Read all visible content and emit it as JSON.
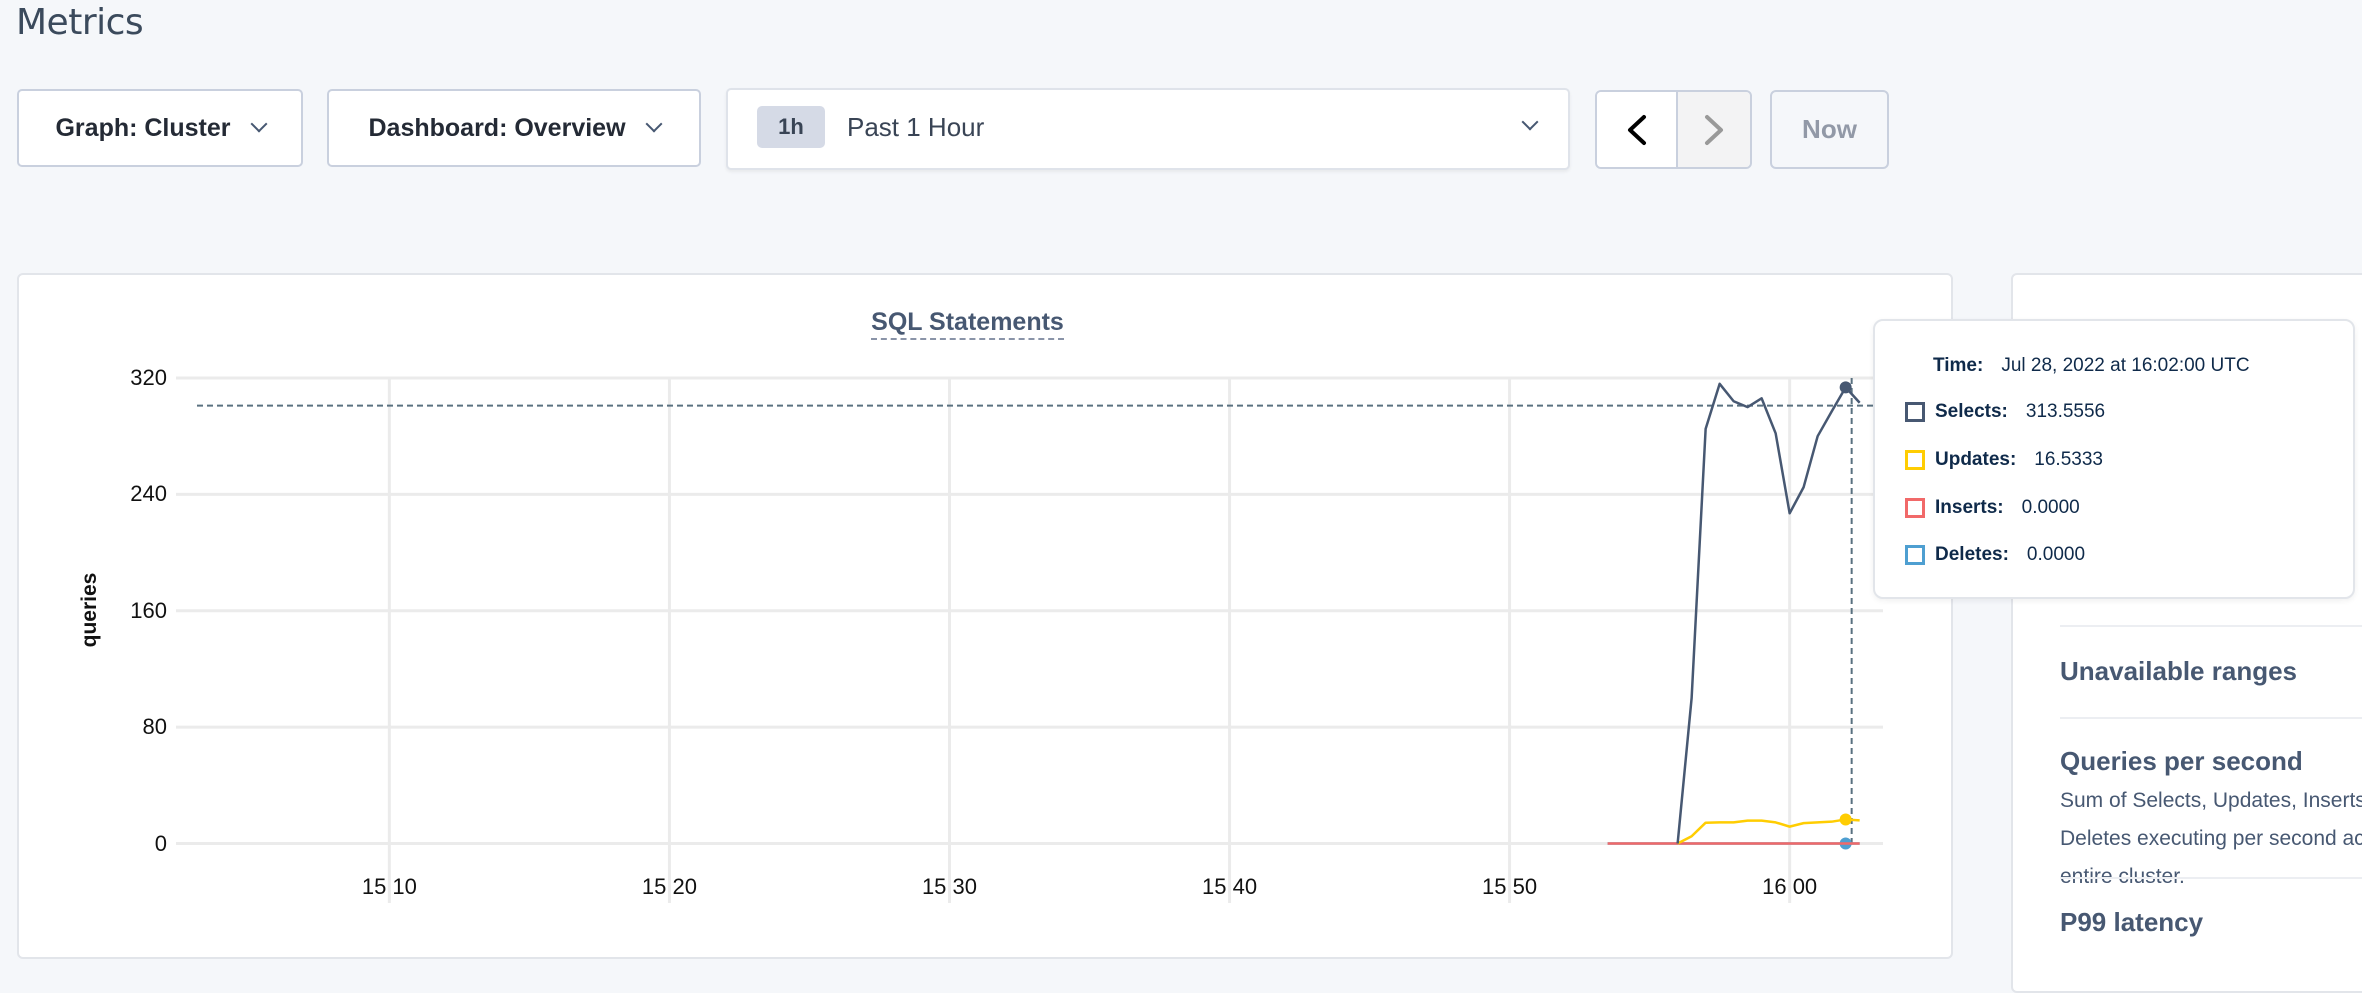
{
  "page": {
    "title": "Metrics"
  },
  "toolbar": {
    "graph_dropdown": "Graph: Cluster",
    "dashboard_dropdown": "Dashboard: Overview",
    "time_badge": "1h",
    "time_range": "Past 1 Hour",
    "prev_icon": "chevron-left-icon",
    "next_icon": "chevron-right-icon",
    "now_label": "Now"
  },
  "chart_data": {
    "type": "line",
    "title": "SQL Statements",
    "ylabel": "queries",
    "xlabel": "",
    "ylim": [
      0,
      320
    ],
    "yticks": [
      "320",
      "240",
      "160",
      "80",
      "0"
    ],
    "ytick_values": [
      320,
      240,
      160,
      80,
      0
    ],
    "xlim": [
      "15:02:40",
      "16:03:20"
    ],
    "xticks": [
      "15:10",
      "15:20",
      "15:30",
      "15:40",
      "15:50",
      "16:00"
    ],
    "grid": true,
    "series": [
      {
        "name": "Selects",
        "color": "#475872",
        "x": [
          "15:56:00",
          "15:56:30",
          "15:57:00",
          "15:57:30",
          "15:58:00",
          "15:58:30",
          "15:59:00",
          "15:59:30",
          "16:00:00",
          "16:00:30",
          "16:01:00",
          "16:01:30",
          "16:02:00",
          "16:02:30"
        ],
        "values": [
          0,
          100,
          285,
          316,
          304,
          300,
          306,
          282,
          227,
          245,
          280,
          297,
          313.5556,
          303
        ]
      },
      {
        "name": "Updates",
        "color": "#ffcd02",
        "x": [
          "15:56:00",
          "15:56:30",
          "15:57:00",
          "15:57:30",
          "15:58:00",
          "15:58:30",
          "15:59:00",
          "15:59:30",
          "16:00:00",
          "16:00:30",
          "16:01:00",
          "16:01:30",
          "16:02:00",
          "16:02:30"
        ],
        "values": [
          0,
          5,
          14.3,
          14.5,
          14.5,
          15.7,
          15.7,
          14.5,
          11.6,
          14,
          14.5,
          15,
          16.5333,
          15.9
        ]
      },
      {
        "name": "Inserts",
        "color": "#f16969",
        "x": [
          "15:53:30",
          "16:02:30"
        ],
        "values": [
          0,
          0
        ]
      },
      {
        "name": "Deletes",
        "color": "#4e9fd1",
        "x": [
          "15:53:30",
          "16:02:30"
        ],
        "values": [
          0,
          0
        ]
      }
    ],
    "crosshair": {
      "x": "16:02:00",
      "y": 301
    }
  },
  "tooltip": {
    "time_label": "Time:",
    "time_value": "Jul 28, 2022 at 16:02:00 UTC",
    "rows": [
      {
        "label": "Selects:",
        "value": "313.5556",
        "color": "#475872"
      },
      {
        "label": "Updates:",
        "value": "16.5333",
        "color": "#ffcd02"
      },
      {
        "label": "Inserts:",
        "value": "0.0000",
        "color": "#f16969"
      },
      {
        "label": "Deletes:",
        "value": "0.0000",
        "color": "#4e9fd1"
      }
    ]
  },
  "right_panel": {
    "items": [
      {
        "title": "Unavailable ranges"
      },
      {
        "title": "Queries per second",
        "description": "Sum of Selects, Updates, Inserts, and Deletes executing per second across your entire cluster."
      },
      {
        "title": "P99 latency"
      }
    ]
  }
}
